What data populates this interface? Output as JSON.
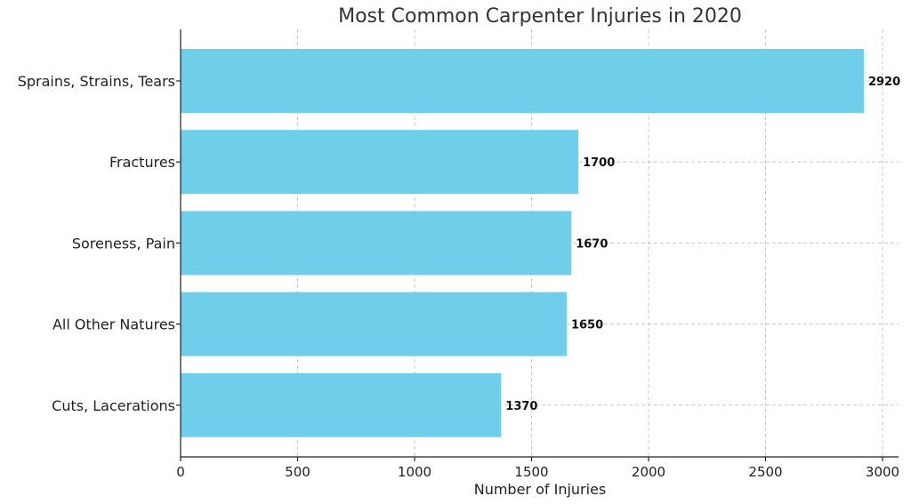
{
  "chart_data": {
    "type": "bar",
    "orientation": "horizontal",
    "title": "Most Common Carpenter Injuries in 2020",
    "xlabel": "Number of Injuries",
    "ylabel": "",
    "xlim": [
      0,
      3070
    ],
    "xticks": [
      0,
      500,
      1000,
      1500,
      2000,
      2500,
      3000
    ],
    "categories": [
      "Sprains, Strains, Tears",
      "Fractures",
      "Soreness, Pain",
      "All Other Natures",
      "Cuts, Lacerations"
    ],
    "values": [
      2920,
      1700,
      1670,
      1650,
      1370
    ],
    "data_labels": [
      "2920",
      "1700",
      "1670",
      "1650",
      "1370"
    ],
    "grid": true,
    "bar_color": "#6fcfeb"
  }
}
